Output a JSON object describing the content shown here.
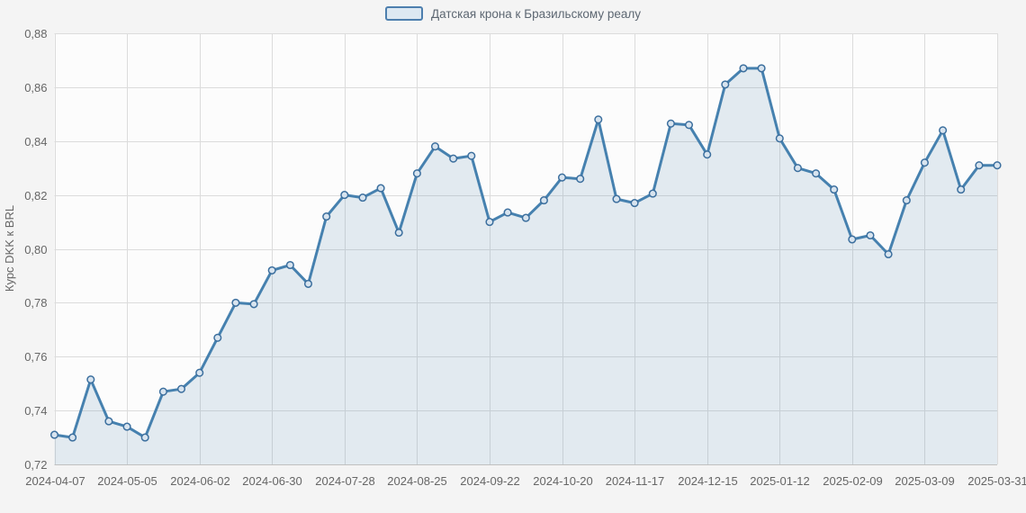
{
  "legend": {
    "series_label": "Датская крона к Бразильскому реалу"
  },
  "chart_data": {
    "type": "area",
    "title": "",
    "legend_label": "Датская крона к Бразильскому реалу",
    "ylabel": "Курс DKK к BRL",
    "xlabel": "",
    "ylim": [
      0.72,
      0.88
    ],
    "ytick_step": 0.02,
    "ytick_labels": [
      "0,72",
      "0,74",
      "0,76",
      "0,78",
      "0,80",
      "0,82",
      "0,84",
      "0,86",
      "0,88"
    ],
    "xtick_every": 4,
    "grid": true,
    "legend_position": "top-center",
    "categories": [
      "2024-04-07",
      "2024-04-14",
      "2024-04-21",
      "2024-04-28",
      "2024-05-05",
      "2024-05-12",
      "2024-05-19",
      "2024-05-26",
      "2024-06-02",
      "2024-06-09",
      "2024-06-16",
      "2024-06-23",
      "2024-06-30",
      "2024-07-07",
      "2024-07-14",
      "2024-07-21",
      "2024-07-28",
      "2024-08-04",
      "2024-08-11",
      "2024-08-18",
      "2024-08-25",
      "2024-09-01",
      "2024-09-08",
      "2024-09-15",
      "2024-09-22",
      "2024-09-29",
      "2024-10-06",
      "2024-10-13",
      "2024-10-20",
      "2024-10-27",
      "2024-11-03",
      "2024-11-10",
      "2024-11-17",
      "2024-11-24",
      "2024-12-01",
      "2024-12-08",
      "2024-12-15",
      "2024-12-22",
      "2024-12-29",
      "2025-01-05",
      "2025-01-12",
      "2025-01-19",
      "2025-01-26",
      "2025-02-02",
      "2025-02-09",
      "2025-02-16",
      "2025-02-23",
      "2025-03-02",
      "2025-03-09",
      "2025-03-16",
      "2025-03-23",
      "2025-03-30",
      "2025-03-31"
    ],
    "values": [
      0.731,
      0.73,
      0.7515,
      0.736,
      0.734,
      0.73,
      0.747,
      0.748,
      0.754,
      0.767,
      0.78,
      0.7795,
      0.792,
      0.794,
      0.787,
      0.812,
      0.82,
      0.819,
      0.8225,
      0.806,
      0.828,
      0.838,
      0.8335,
      0.8345,
      0.81,
      0.8135,
      0.8115,
      0.818,
      0.8265,
      0.826,
      0.848,
      0.8185,
      0.817,
      0.8205,
      0.8465,
      0.846,
      0.835,
      0.861,
      0.867,
      0.867,
      0.841,
      0.83,
      0.828,
      0.822,
      0.8035,
      0.805,
      0.798,
      0.818,
      0.832,
      0.844,
      0.822,
      0.831,
      0.831
    ],
    "colors": {
      "line": "#4681af",
      "area_fill": "rgba(70,125,170,0.14)",
      "marker_fill": "#d8e4ef",
      "marker_stroke": "#3c6f9e",
      "grid": "#dcdcdc",
      "axis_line": "#c0c0c0",
      "axis_text": "#666666",
      "plot_bg": "#fcfcfc",
      "page_bg": "#f4f4f4",
      "legend_border": "#4d7fae",
      "legend_fill": "#dce8f2",
      "legend_text": "#5d6772"
    }
  }
}
